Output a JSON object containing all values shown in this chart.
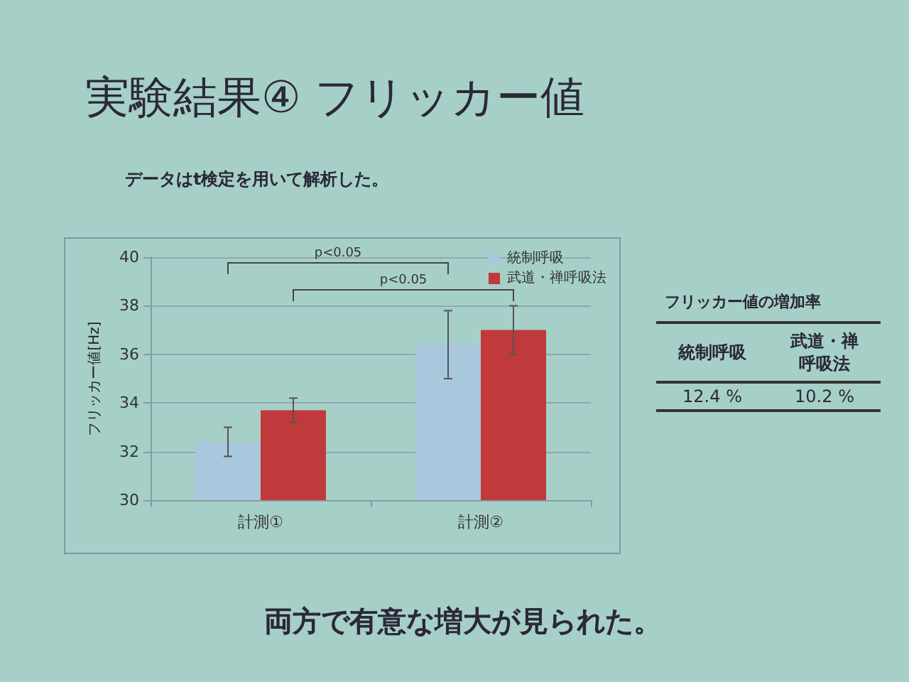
{
  "chart_data": [
    {
      "type": "bar",
      "title": "実験結果④ フリッカー値",
      "subtitle": "データはt検定を用いて解析した。",
      "categories": [
        "計測①",
        "計測②"
      ],
      "ylabel": "フリッカー値[Hz]",
      "ylim": [
        30,
        40
      ],
      "yticks": [
        30,
        32,
        34,
        36,
        38,
        40
      ],
      "grid": "y",
      "legend": "top right",
      "series": [
        {
          "name": "統制呼吸",
          "color": "#a9c7dd",
          "values": [
            32.4,
            36.4
          ],
          "errors": [
            0.6,
            1.4
          ]
        },
        {
          "name": "武道・禅呼吸法",
          "color": "#c0393b",
          "values": [
            33.7,
            37.0
          ],
          "errors": [
            0.5,
            1.0
          ]
        }
      ],
      "annotations": [
        "p<0.05",
        "p<0.05",
        "両方で有意な増大が見られた。"
      ]
    },
    {
      "type": "other",
      "title": "フリッカー値の増加率",
      "categories": [
        "統制呼吸",
        "武道・禅呼吸法"
      ],
      "value_labels": [
        "12.4 %",
        "10.2 %"
      ]
    }
  ]
}
